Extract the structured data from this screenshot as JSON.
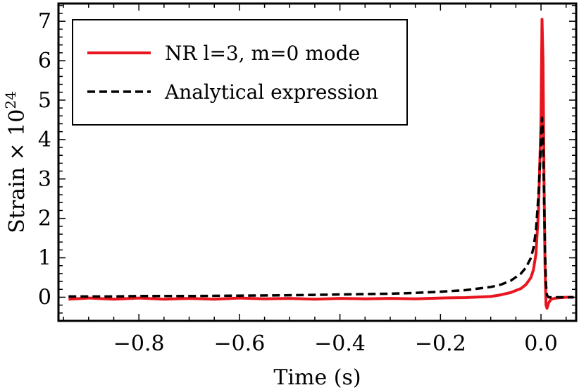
{
  "chart_data": {
    "type": "line",
    "xlabel": "Time (s)",
    "ylabel": "Strain × 10",
    "ylabel_exponent": "24",
    "xlim": [
      -0.96,
      0.07
    ],
    "ylim": [
      -0.6,
      7.45
    ],
    "x_ticks": [
      {
        "value": -0.8,
        "label": "−0.8"
      },
      {
        "value": -0.6,
        "label": "−0.6"
      },
      {
        "value": -0.4,
        "label": "−0.4"
      },
      {
        "value": -0.2,
        "label": "−0.2"
      },
      {
        "value": 0.0,
        "label": "0.0"
      }
    ],
    "y_ticks": [
      {
        "value": 0,
        "label": "0"
      },
      {
        "value": 1,
        "label": "1"
      },
      {
        "value": 2,
        "label": "2"
      },
      {
        "value": 3,
        "label": "3"
      },
      {
        "value": 4,
        "label": "4"
      },
      {
        "value": 5,
        "label": "5"
      },
      {
        "value": 6,
        "label": "6"
      },
      {
        "value": 7,
        "label": "7"
      }
    ],
    "legend_position": "top-left",
    "series": [
      {
        "name": "NR l=3, m=0 mode",
        "color": "#e8141e",
        "style": "solid",
        "x": [
          -0.94,
          -0.9,
          -0.85,
          -0.8,
          -0.75,
          -0.7,
          -0.65,
          -0.6,
          -0.55,
          -0.5,
          -0.45,
          -0.4,
          -0.35,
          -0.3,
          -0.25,
          -0.2,
          -0.15,
          -0.1,
          -0.08,
          -0.06,
          -0.04,
          -0.03,
          -0.02,
          -0.015,
          -0.01,
          -0.005,
          0.0,
          0.002,
          0.004,
          0.006,
          0.008,
          0.01,
          0.012,
          0.015,
          0.02,
          0.03,
          0.05,
          0.065
        ],
        "y": [
          -0.05,
          -0.02,
          -0.05,
          -0.02,
          -0.05,
          -0.03,
          -0.05,
          -0.02,
          -0.04,
          -0.03,
          -0.05,
          -0.03,
          -0.04,
          -0.03,
          -0.04,
          -0.02,
          -0.01,
          0.02,
          0.06,
          0.12,
          0.22,
          0.32,
          0.5,
          0.7,
          1.1,
          2.2,
          4.5,
          7.05,
          6.0,
          3.0,
          0.8,
          -0.2,
          -0.28,
          -0.15,
          -0.05,
          -0.02,
          0.0,
          0.0
        ]
      },
      {
        "name": "Analytical expression",
        "color": "#000000",
        "style": "dashed",
        "x": [
          -0.94,
          -0.85,
          -0.8,
          -0.7,
          -0.6,
          -0.5,
          -0.4,
          -0.3,
          -0.25,
          -0.2,
          -0.15,
          -0.1,
          -0.08,
          -0.06,
          -0.04,
          -0.03,
          -0.02,
          -0.015,
          -0.01,
          -0.005,
          0.0,
          0.002,
          0.004,
          0.006,
          0.008,
          0.01,
          0.012,
          0.015,
          0.02,
          0.03,
          0.05,
          0.065
        ],
        "y": [
          0.02,
          0.02,
          0.03,
          0.03,
          0.04,
          0.05,
          0.07,
          0.09,
          0.11,
          0.14,
          0.18,
          0.26,
          0.32,
          0.42,
          0.6,
          0.75,
          1.0,
          1.25,
          1.7,
          2.6,
          3.9,
          4.55,
          4.1,
          2.6,
          1.2,
          0.3,
          0.05,
          0.0,
          0.0,
          0.0,
          0.0,
          0.0
        ]
      }
    ]
  }
}
